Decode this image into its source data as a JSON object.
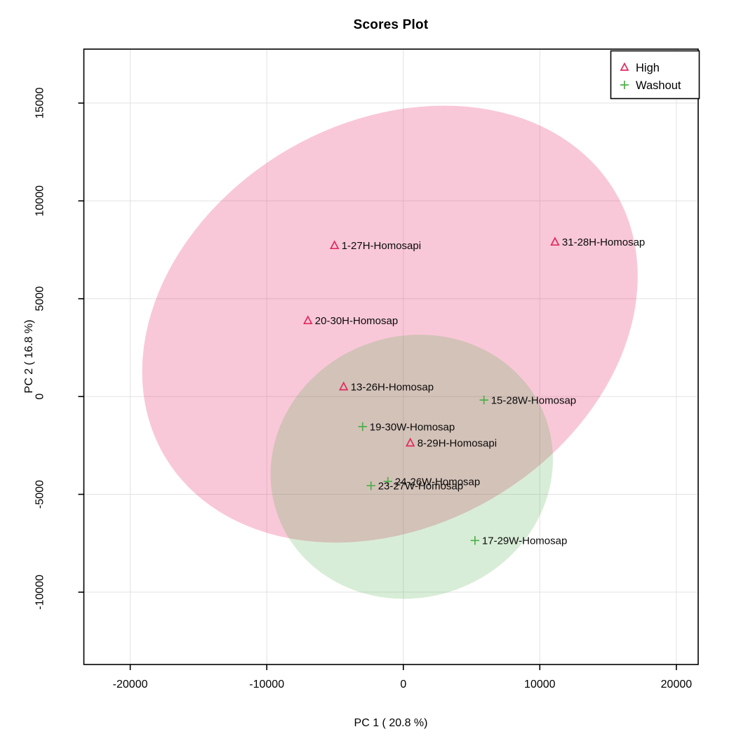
{
  "title": "Scores Plot",
  "axes": {
    "x_title": "PC 1 ( 20.8 %)",
    "y_title": "PC 2 ( 16.8 %)"
  },
  "legend": {
    "items": [
      {
        "label": "High",
        "marker": "open-triangle",
        "color": "#e12a5e"
      },
      {
        "label": "Washout",
        "marker": "plus",
        "color": "#4daf4a"
      }
    ]
  },
  "colors": {
    "high": "#e12a5e",
    "washout": "#4daf4a",
    "grid": "#e2e2e2",
    "axis": "#000000",
    "high_ellipse_fill": "rgba(228,26,92,0.24)",
    "washout_ellipse_fill": "rgba(77,175,74,0.22)"
  },
  "chart_data": {
    "type": "scatter",
    "title": "Scores Plot",
    "xlabel": "PC 1 ( 20.8 %)",
    "ylabel": "PC 2 ( 16.8 %)",
    "xlim": [
      -23400,
      21600
    ],
    "ylim": [
      -13700,
      17760
    ],
    "xticks": [
      -20000,
      -10000,
      0,
      10000,
      20000
    ],
    "yticks": [
      -10000,
      -5000,
      0,
      5000,
      10000,
      15000
    ],
    "grid": true,
    "legend_position": "top-right",
    "series": [
      {
        "name": "High",
        "marker": "open-triangle",
        "color": "#e12a5e",
        "points": [
          {
            "label": "1-27H-Homosapi",
            "x": -5040,
            "y": 7720
          },
          {
            "label": "20-30H-Homosap",
            "x": -6990,
            "y": 3880
          },
          {
            "label": "13-26H-Homosap",
            "x": -4370,
            "y": 500
          },
          {
            "label": "8-29H-Homosapi",
            "x": 510,
            "y": -2370
          },
          {
            "label": "31-28H-Homosap",
            "x": 11110,
            "y": 7900
          }
        ]
      },
      {
        "name": "Washout",
        "marker": "plus",
        "color": "#4daf4a",
        "points": [
          {
            "label": "15-28W-Homosap",
            "x": 5910,
            "y": -180
          },
          {
            "label": "19-30W-Homosap",
            "x": -2980,
            "y": -1540
          },
          {
            "label": "24-26W-Homosap",
            "x": -1130,
            "y": -4340
          },
          {
            "label": "23-27W-Homosap",
            "x": -2370,
            "y": -4560
          },
          {
            "label": "17-29W-Homosap",
            "x": 5250,
            "y": -7360
          }
        ]
      }
    ],
    "ellipses": [
      {
        "group": "High",
        "cx": -980,
        "cy": 3700,
        "rx": 19130,
        "ry": 10340,
        "rotation_deg": -30,
        "fill": "rgba(228,26,92,0.24)"
      },
      {
        "group": "Washout",
        "cx": 620,
        "cy": -3590,
        "rx": 10440,
        "ry": 6680,
        "rotation_deg": -20,
        "fill": "rgba(77,75,74,0.22)",
        "fill_color": "rgba(77,175,74,0.22)"
      }
    ]
  }
}
